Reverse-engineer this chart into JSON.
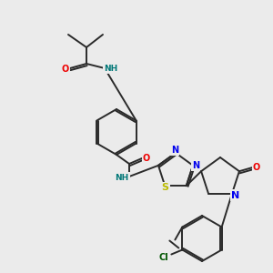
{
  "bg_color": "#ebebeb",
  "bond_color": "#2a2a2a",
  "atom_colors": {
    "N": "#0000ee",
    "O": "#ee0000",
    "S": "#bbbb00",
    "Cl": "#005500",
    "H": "#007777"
  },
  "figsize": [
    3.0,
    3.0
  ],
  "dpi": 100
}
